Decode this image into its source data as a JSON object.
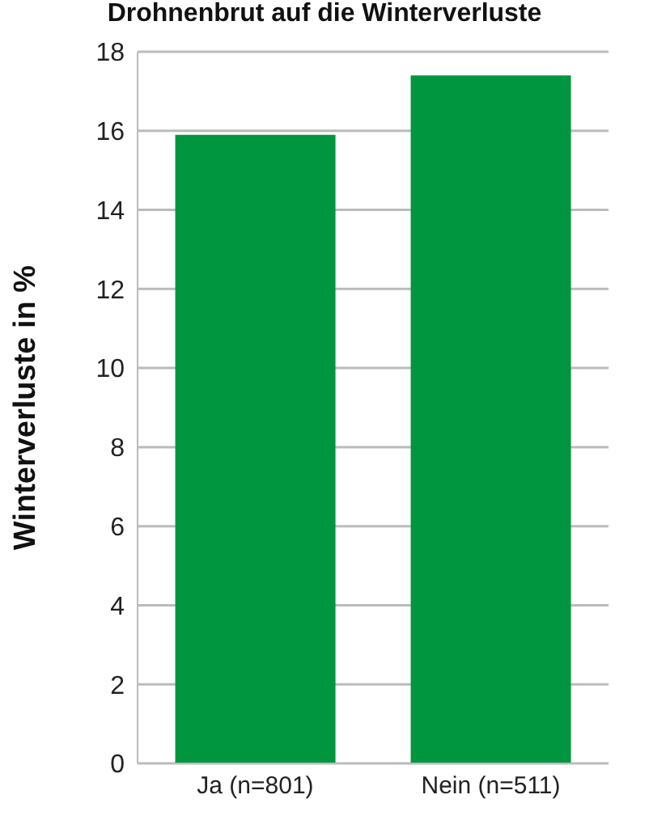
{
  "chart_data": {
    "type": "bar",
    "title": "Drohnenbrut auf die Winterverluste",
    "ylabel": "Winterverluste in %",
    "categories": [
      "Ja (n=801)",
      "Nein (n=511)"
    ],
    "values": [
      15.9,
      17.4
    ],
    "color": "#00953f",
    "ylim": [
      0,
      18
    ],
    "yticks": [
      0,
      2,
      4,
      6,
      8,
      10,
      12,
      14,
      16,
      18
    ],
    "grid": "y"
  }
}
